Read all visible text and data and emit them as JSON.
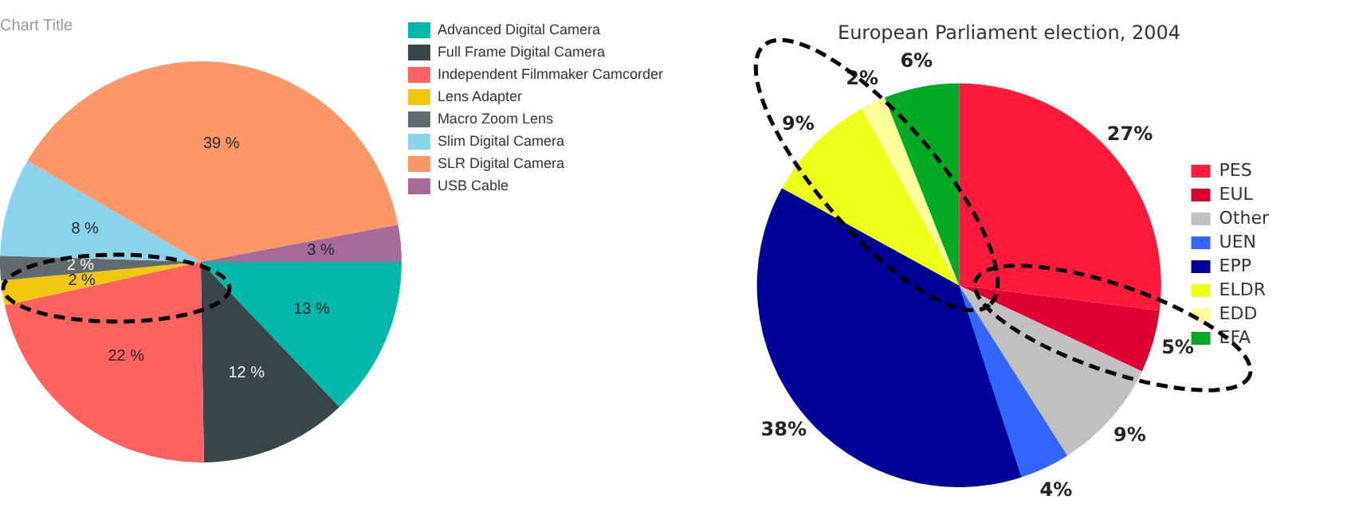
{
  "chart_data": [
    {
      "type": "pie",
      "title": "Chart Title",
      "legend": "top right",
      "categories": [
        "Advanced Digital Camera",
        "Full Frame Digital Camera",
        "Independent Filmmaker Camcorder",
        "Lens Adapter",
        "Macro Zoom Lens",
        "Slim Digital Camera",
        "SLR Digital Camera",
        "USB Cable"
      ],
      "values": [
        13,
        12,
        22,
        2,
        2,
        8,
        39,
        3
      ],
      "value_labels": [
        "13 %",
        "12 %",
        "22 %",
        "2 %",
        "2 %",
        "8 %",
        "39 %",
        "3 %"
      ],
      "colors": [
        "#01b8aa",
        "#374649",
        "#fd625e",
        "#f2c80f",
        "#5f6b6d",
        "#8ad4eb",
        "#fe9666",
        "#a66999"
      ]
    },
    {
      "type": "pie",
      "title": "European Parliament election, 2004",
      "legend": "right",
      "categories": [
        "PES",
        "EUL",
        "Other",
        "UEN",
        "EPP",
        "ELDR",
        "EDD",
        "EFA"
      ],
      "values": [
        27,
        5,
        9,
        4,
        38,
        9,
        2,
        6
      ],
      "value_labels": [
        "27%",
        "5%",
        "9%",
        "4%",
        "38%",
        "9%",
        "2%",
        "6%"
      ],
      "colors": [
        "#ff1a3c",
        "#dd0030",
        "#c0c0c0",
        "#3366ff",
        "#000099",
        "#eeff1a",
        "#ffff99",
        "#00aa22"
      ]
    }
  ]
}
